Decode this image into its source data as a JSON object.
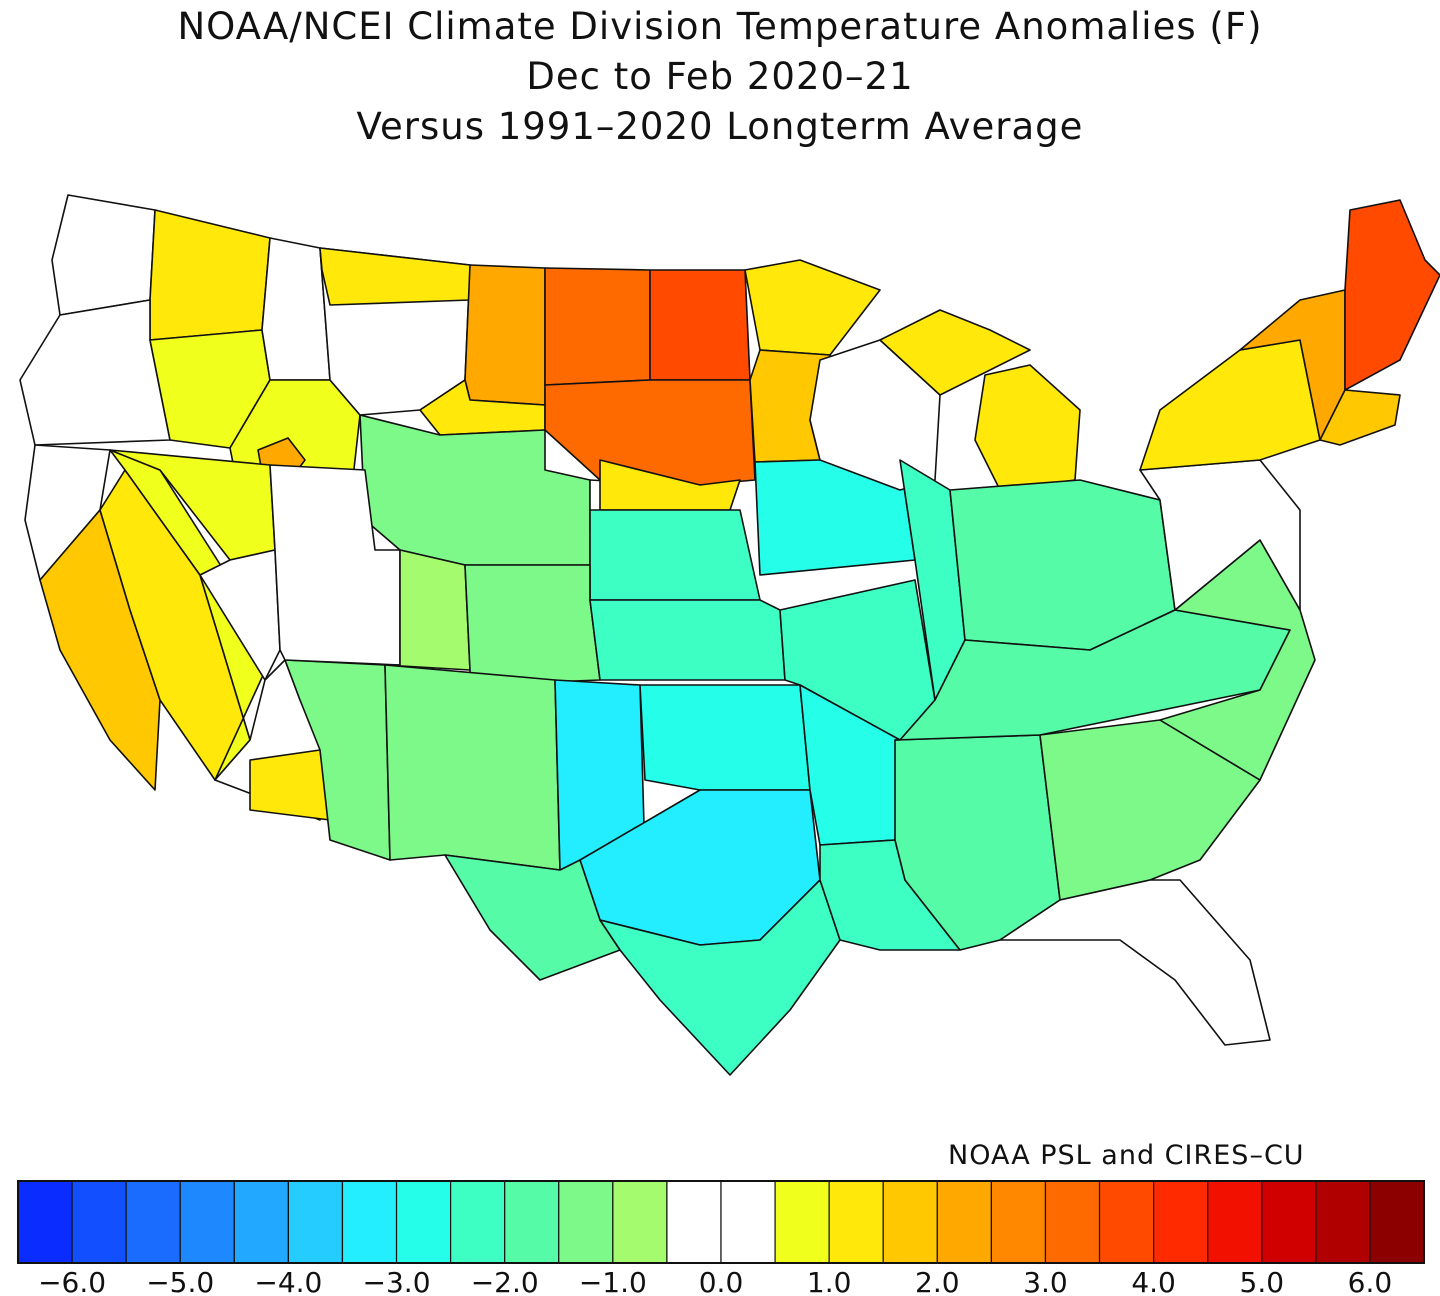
{
  "title": {
    "line1": "NOAA/NCEI Climate Division Temperature Anomalies (F)",
    "line2": "Dec to Feb 2020–21",
    "line3": "Versus 1991–2020 Longterm Average"
  },
  "credit": "NOAA PSL and CIRES–CU",
  "colors": {
    "border": "#111111",
    "bins": [
      "#0a2cff",
      "#1250ff",
      "#1a6cff",
      "#1e88ff",
      "#22a8ff",
      "#24ccff",
      "#22eeff",
      "#25ffea",
      "#3dffc4",
      "#55fba6",
      "#7cf989",
      "#a4fb6e",
      "#ffffff",
      "#ffffff",
      "#f1ff1c",
      "#ffe80a",
      "#ffc800",
      "#ffa800",
      "#ff8800",
      "#ff6a00",
      "#ff4a00",
      "#ff2a00",
      "#f21000",
      "#d00000",
      "#b00000",
      "#8c0000"
    ]
  },
  "legend": {
    "ticks": [
      "−6.0",
      "−5.0",
      "−4.0",
      "−3.0",
      "−2.0",
      "−1.0",
      "0.0",
      "1.0",
      "2.0",
      "3.0",
      "4.0",
      "5.0",
      "6.0"
    ]
  },
  "map_data": {
    "type": "choropleth",
    "units": "°F anomaly",
    "regions": [
      {
        "id": "wa-west",
        "anomaly": 0.3
      },
      {
        "id": "wa-east",
        "anomaly": 1.2
      },
      {
        "id": "or-west",
        "anomaly": 0.2
      },
      {
        "id": "or-east",
        "anomaly": 0.6
      },
      {
        "id": "id-north",
        "anomaly": 0.4
      },
      {
        "id": "id-south",
        "anomaly": 0.5
      },
      {
        "id": "id-snake",
        "anomaly": 2.3
      },
      {
        "id": "mt-west",
        "anomaly": 0.4
      },
      {
        "id": "mt-north",
        "anomaly": 1.1
      },
      {
        "id": "mt-east",
        "anomaly": 2.4
      },
      {
        "id": "mt-south",
        "anomaly": 1.1
      },
      {
        "id": "nd-west",
        "anomaly": 3.1
      },
      {
        "id": "nd-east",
        "anomaly": 3.8
      },
      {
        "id": "sd",
        "anomaly": 3.0
      },
      {
        "id": "mn",
        "anomaly": 1.9
      },
      {
        "id": "mn-north",
        "anomaly": 1.0
      },
      {
        "id": "wy",
        "anomaly": -1.2
      },
      {
        "id": "co-east-ne",
        "anomaly": 0.3
      },
      {
        "id": "ne",
        "anomaly": -2.1
      },
      {
        "id": "ne-north",
        "anomaly": 1.1
      },
      {
        "id": "ia",
        "anomaly": -2.8
      },
      {
        "id": "wi",
        "anomaly": 0.1
      },
      {
        "id": "mi-up",
        "anomaly": 1.0
      },
      {
        "id": "mi-lp",
        "anomaly": 1.0
      },
      {
        "id": "nv",
        "anomaly": 0.6
      },
      {
        "id": "nv-south",
        "anomaly": 0.2
      },
      {
        "id": "ca-north",
        "anomaly": 0.1
      },
      {
        "id": "ca-coast",
        "anomaly": 1.7
      },
      {
        "id": "ca-central",
        "anomaly": 1.3
      },
      {
        "id": "ca-south",
        "anomaly": 0.6
      },
      {
        "id": "az-nw",
        "anomaly": 0.2
      },
      {
        "id": "az-wlow",
        "anomaly": 1.0
      },
      {
        "id": "az",
        "anomaly": -1.3
      },
      {
        "id": "ut",
        "anomaly": 0.2
      },
      {
        "id": "ut-east",
        "anomaly": -1.0
      },
      {
        "id": "co",
        "anomaly": -1.5
      },
      {
        "id": "nm",
        "anomaly": -1.4
      },
      {
        "id": "ks",
        "anomaly": -2.4
      },
      {
        "id": "ok-tx-panhandle",
        "anomaly": -3.3
      },
      {
        "id": "ok",
        "anomaly": -2.9
      },
      {
        "id": "tx-north",
        "anomaly": -3.1
      },
      {
        "id": "tx-west",
        "anomaly": -2.0
      },
      {
        "id": "tx-south",
        "anomaly": -2.1
      },
      {
        "id": "mo",
        "anomaly": -2.4
      },
      {
        "id": "il",
        "anomaly": -2.2
      },
      {
        "id": "in-oh",
        "anomaly": -1.6
      },
      {
        "id": "ar",
        "anomaly": -2.7
      },
      {
        "id": "la",
        "anomaly": -2.5
      },
      {
        "id": "ms-al",
        "anomaly": -1.6
      },
      {
        "id": "ky-tn",
        "anomaly": -1.8
      },
      {
        "id": "ga-sc",
        "anomaly": -1.3
      },
      {
        "id": "nc-va",
        "anomaly": -1.2
      },
      {
        "id": "fl",
        "anomaly": 0.2
      },
      {
        "id": "pa-nj-md",
        "anomaly": 0.1
      },
      {
        "id": "ny",
        "anomaly": 1.2
      },
      {
        "id": "vt-nh-west",
        "anomaly": 2.2
      },
      {
        "id": "ma-ct-ri",
        "anomaly": 1.5
      },
      {
        "id": "me",
        "anomaly": 3.8
      }
    ]
  }
}
